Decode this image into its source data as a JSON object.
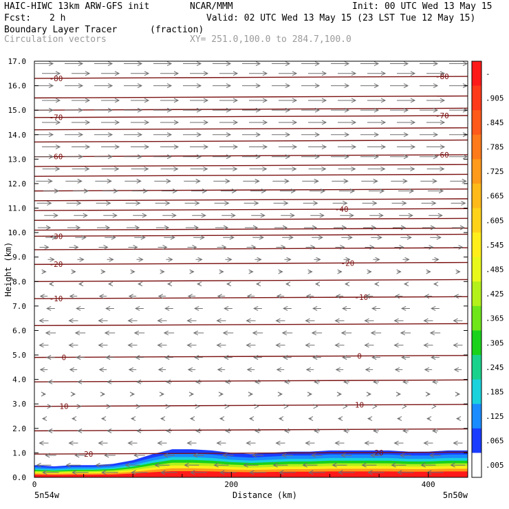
{
  "header": {
    "title": "HAIC-HIWC 13km ARW-GFS init",
    "org": "NCAR/MMM",
    "init": "Init: 00 UTC Wed 13 May 15",
    "fcst_label": "Fcst:",
    "fcst_value": "2 h",
    "valid": "Valid: 02 UTC Wed 13 May 15 (23 LST Tue 12 May 15)",
    "field_name": "Boundary Layer Tracer",
    "field_unit": "(fraction)",
    "vector_label": "Circulation vectors",
    "xy_label": "XY= 251.0,100.0 to 284.7,100.0"
  },
  "chart_data": {
    "type": "heatmap",
    "xlabel": "Distance (km)",
    "ylabel": "Height (km)",
    "xlim": [
      0,
      440
    ],
    "ylim": [
      0,
      17
    ],
    "x_ticks": [
      0,
      200,
      400
    ],
    "x_tick_labels": [
      "0",
      "200",
      "400"
    ],
    "y_ticks": [
      0,
      1,
      2,
      3,
      4,
      5,
      6,
      7,
      8,
      9,
      10,
      11,
      12,
      13,
      14,
      15,
      16,
      17
    ],
    "y_tick_labels": [
      "0.0",
      "1.0",
      "2.0",
      "3.0",
      "4.0",
      "5.0",
      "6.0",
      "7.0",
      "8.0",
      "9.0",
      "10.0",
      "11.0",
      "12.0",
      "13.0",
      "14.0",
      "15.0",
      "16.0",
      "17.0"
    ],
    "x_end_labels": [
      "5n54w",
      "5n50w"
    ],
    "colorbar": {
      "labels": [
        "-",
        ".905",
        ".845",
        ".785",
        ".725",
        ".665",
        ".605",
        ".545",
        ".485",
        ".425",
        ".365",
        ".305",
        ".245",
        ".185",
        ".125",
        ".065",
        ".005"
      ],
      "colors": [
        "#ff1a1a",
        "#ff3a1a",
        "#ff5a1a",
        "#ff7a1a",
        "#ff9a1a",
        "#ffba1a",
        "#ffd21a",
        "#ffee1a",
        "#e8f81a",
        "#b4f01a",
        "#6ee61a",
        "#1ad21a",
        "#1ad28c",
        "#1ad2dc",
        "#1a8cff",
        "#1a3cff",
        "#ffffff"
      ]
    },
    "tracer_profile": {
      "x": [
        0,
        20,
        40,
        60,
        80,
        100,
        120,
        140,
        160,
        180,
        200,
        220,
        240,
        260,
        280,
        300,
        320,
        340,
        360,
        380,
        400,
        420,
        440
      ],
      "top_km": [
        0.5,
        0.45,
        0.5,
        0.5,
        0.55,
        0.7,
        0.95,
        1.15,
        1.15,
        1.1,
        1.0,
        0.95,
        1.0,
        1.05,
        1.05,
        1.1,
        1.1,
        1.1,
        1.1,
        1.05,
        1.05,
        1.1,
        1.1
      ]
    },
    "isotherms": [
      {
        "label": "-80",
        "y": 16.3,
        "labels_at": [
          22,
          414
        ]
      },
      {
        "label": "-70",
        "y": 14.7,
        "labels_at": [
          22,
          414
        ]
      },
      {
        "label": "-60",
        "y": 13.1,
        "labels_at": [
          22,
          414
        ]
      },
      {
        "label": "-40",
        "y": 10.9,
        "labels_at": [
          312
        ]
      },
      {
        "label": "-30",
        "y": 9.85,
        "labels_at": [
          22
        ]
      },
      {
        "label": "-20",
        "y": 8.7,
        "labels_at": [
          22,
          318
        ]
      },
      {
        "label": "-10",
        "y": 7.3,
        "labels_at": [
          22,
          332
        ]
      },
      {
        "label": "0",
        "y": 4.9,
        "labels_at": [
          30,
          330
        ]
      },
      {
        "label": "10",
        "y": 2.9,
        "labels_at": [
          30,
          330
        ]
      },
      {
        "label": "20",
        "y": 0.95,
        "labels_at": [
          55,
          350
        ]
      }
    ],
    "extra_isotherm_y": [
      15.5,
      15.0,
      14.2,
      13.7,
      12.7,
      12.3,
      11.7,
      11.3,
      10.5,
      10.1,
      9.3,
      8.0,
      6.2,
      3.9,
      1.9
    ],
    "vector_rows_km": [
      16.9,
      16.5,
      16.0,
      15.4,
      15.0,
      14.5,
      14.0,
      13.5,
      13.1,
      12.6,
      12.1,
      11.7,
      11.2,
      10.7,
      10.2,
      9.8,
      9.4,
      8.9,
      8.4,
      7.9,
      7.4,
      6.9,
      6.4,
      5.9,
      5.4,
      4.9,
      4.4,
      3.9,
      3.4,
      2.9,
      2.4,
      1.9,
      1.4,
      0.9,
      0.5,
      0.2
    ],
    "vector_u": [
      1.0,
      1.0,
      1.0,
      1.0,
      1.0,
      1.0,
      1.0,
      1.0,
      1.0,
      0.95,
      0.9,
      0.85,
      0.8,
      0.75,
      0.7,
      0.6,
      0.5,
      0.35,
      0.2,
      -0.15,
      -0.4,
      -0.45,
      -0.5,
      -0.55,
      -0.5,
      -0.45,
      -0.4,
      -0.3,
      0.15,
      0.05,
      -0.15,
      -0.3,
      -0.5,
      -0.6,
      -0.8,
      -0.9
    ]
  }
}
